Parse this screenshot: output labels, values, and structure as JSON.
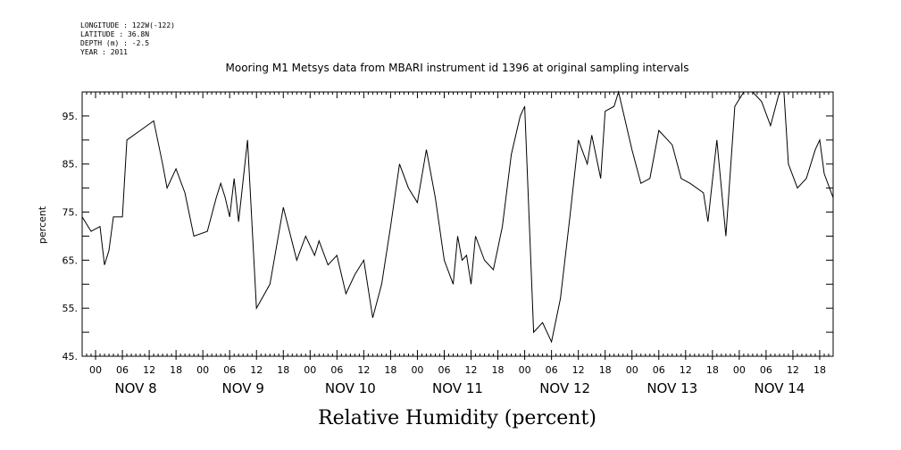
{
  "header": {
    "longitude": "LONGITUDE : 122W(-122)",
    "latitude": "LATITUDE : 36.8N",
    "depth": "DEPTH (m) : -2.5",
    "year": "YEAR : 2011"
  },
  "chart_data": {
    "type": "line",
    "title": "Mooring M1 Metsys data from MBARI instrument id 1396 at original sampling intervals",
    "xlabel": "Relative Humidity (percent)",
    "ylabel": "percent",
    "ylim": [
      45,
      100
    ],
    "yticks": [
      45,
      55,
      65,
      75,
      85,
      95
    ],
    "ytick_labels": [
      "45.",
      "55.",
      "65.",
      "75.",
      "85.",
      "95."
    ],
    "xlim": [
      "2011-11-07T21:00",
      "2011-11-14T21:00"
    ],
    "x_hour_ticks": [
      "00",
      "06",
      "12",
      "18",
      "00",
      "06",
      "12",
      "18",
      "00",
      "06",
      "12",
      "18",
      "00",
      "06",
      "12",
      "18",
      "00",
      "06",
      "12",
      "18",
      "00",
      "06",
      "12",
      "18",
      "00",
      "06",
      "12",
      "18"
    ],
    "day_labels": [
      "NOV  8",
      "NOV  9",
      "NOV 10",
      "NOV 11",
      "NOV 12",
      "NOV 13",
      "NOV 14"
    ],
    "grid": false,
    "series": [
      {
        "color": "#000000",
        "x": [
          "2011-11-07T21:00",
          "2011-11-07T23:00",
          "2011-11-08T01:00",
          "2011-11-08T02:00",
          "2011-11-08T03:00",
          "2011-11-08T04:00",
          "2011-11-08T06:00",
          "2011-11-08T07:00",
          "2011-11-08T10:00",
          "2011-11-08T13:00",
          "2011-11-08T15:00",
          "2011-11-08T16:00",
          "2011-11-08T18:00",
          "2011-11-08T20:00",
          "2011-11-08T22:00",
          "2011-11-09T01:00",
          "2011-11-09T03:00",
          "2011-11-09T04:00",
          "2011-11-09T05:00",
          "2011-11-09T06:00",
          "2011-11-09T07:00",
          "2011-11-09T08:00",
          "2011-11-09T10:00",
          "2011-11-09T12:00",
          "2011-11-09T15:00",
          "2011-11-09T18:00",
          "2011-11-09T21:00",
          "2011-11-09T23:00",
          "2011-11-10T01:00",
          "2011-11-10T02:00",
          "2011-11-10T04:00",
          "2011-11-10T06:00",
          "2011-11-10T08:00",
          "2011-11-10T10:00",
          "2011-11-10T12:00",
          "2011-11-10T14:00",
          "2011-11-10T16:00",
          "2011-11-10T18:00",
          "2011-11-10T20:00",
          "2011-11-10T22:00",
          "2011-11-11T00:00",
          "2011-11-11T02:00",
          "2011-11-11T04:00",
          "2011-11-11T06:00",
          "2011-11-11T08:00",
          "2011-11-11T09:00",
          "2011-11-11T10:00",
          "2011-11-11T11:00",
          "2011-11-11T12:00",
          "2011-11-11T13:00",
          "2011-11-11T15:00",
          "2011-11-11T17:00",
          "2011-11-11T19:00",
          "2011-11-11T21:00",
          "2011-11-11T23:00",
          "2011-11-12T00:00",
          "2011-11-12T02:00",
          "2011-11-12T04:00",
          "2011-11-12T06:00",
          "2011-11-12T08:00",
          "2011-11-12T10:00",
          "2011-11-12T12:00",
          "2011-11-12T14:00",
          "2011-11-12T15:00",
          "2011-11-12T17:00",
          "2011-11-12T18:00",
          "2011-11-12T20:00",
          "2011-11-12T21:00",
          "2011-11-12T23:00",
          "2011-11-13T00:00",
          "2011-11-13T02:00",
          "2011-11-13T04:00",
          "2011-11-13T06:00",
          "2011-11-13T09:00",
          "2011-11-13T11:00",
          "2011-11-13T13:00",
          "2011-11-13T16:00",
          "2011-11-13T17:00",
          "2011-11-13T19:00",
          "2011-11-13T21:00",
          "2011-11-13T23:00",
          "2011-11-14T01:00",
          "2011-11-14T03:00",
          "2011-11-14T05:00",
          "2011-11-14T07:00",
          "2011-11-14T09:00",
          "2011-11-14T10:00",
          "2011-11-14T11:00",
          "2011-11-14T13:00",
          "2011-11-14T15:00",
          "2011-11-14T17:00",
          "2011-11-14T18:00",
          "2011-11-14T19:00",
          "2011-11-14T21:00"
        ],
        "y": [
          74,
          71,
          72,
          64,
          67,
          74,
          74,
          90,
          92,
          94,
          85,
          80,
          84,
          79,
          70,
          71,
          78,
          81,
          78,
          74,
          82,
          73,
          90,
          55,
          60,
          76,
          65,
          70,
          66,
          69,
          64,
          66,
          58,
          62,
          65,
          53,
          60,
          72,
          85,
          80,
          77,
          88,
          78,
          65,
          60,
          70,
          65,
          66,
          60,
          70,
          65,
          63,
          72,
          87,
          95,
          97,
          50,
          52,
          48,
          57,
          73,
          90,
          85,
          91,
          82,
          96,
          97,
          100,
          92,
          88,
          81,
          82,
          92,
          89,
          82,
          81,
          79,
          73,
          90,
          70,
          97,
          100,
          100,
          98,
          93,
          100,
          100,
          85,
          80,
          82,
          88,
          90,
          83,
          78
        ]
      }
    ]
  }
}
